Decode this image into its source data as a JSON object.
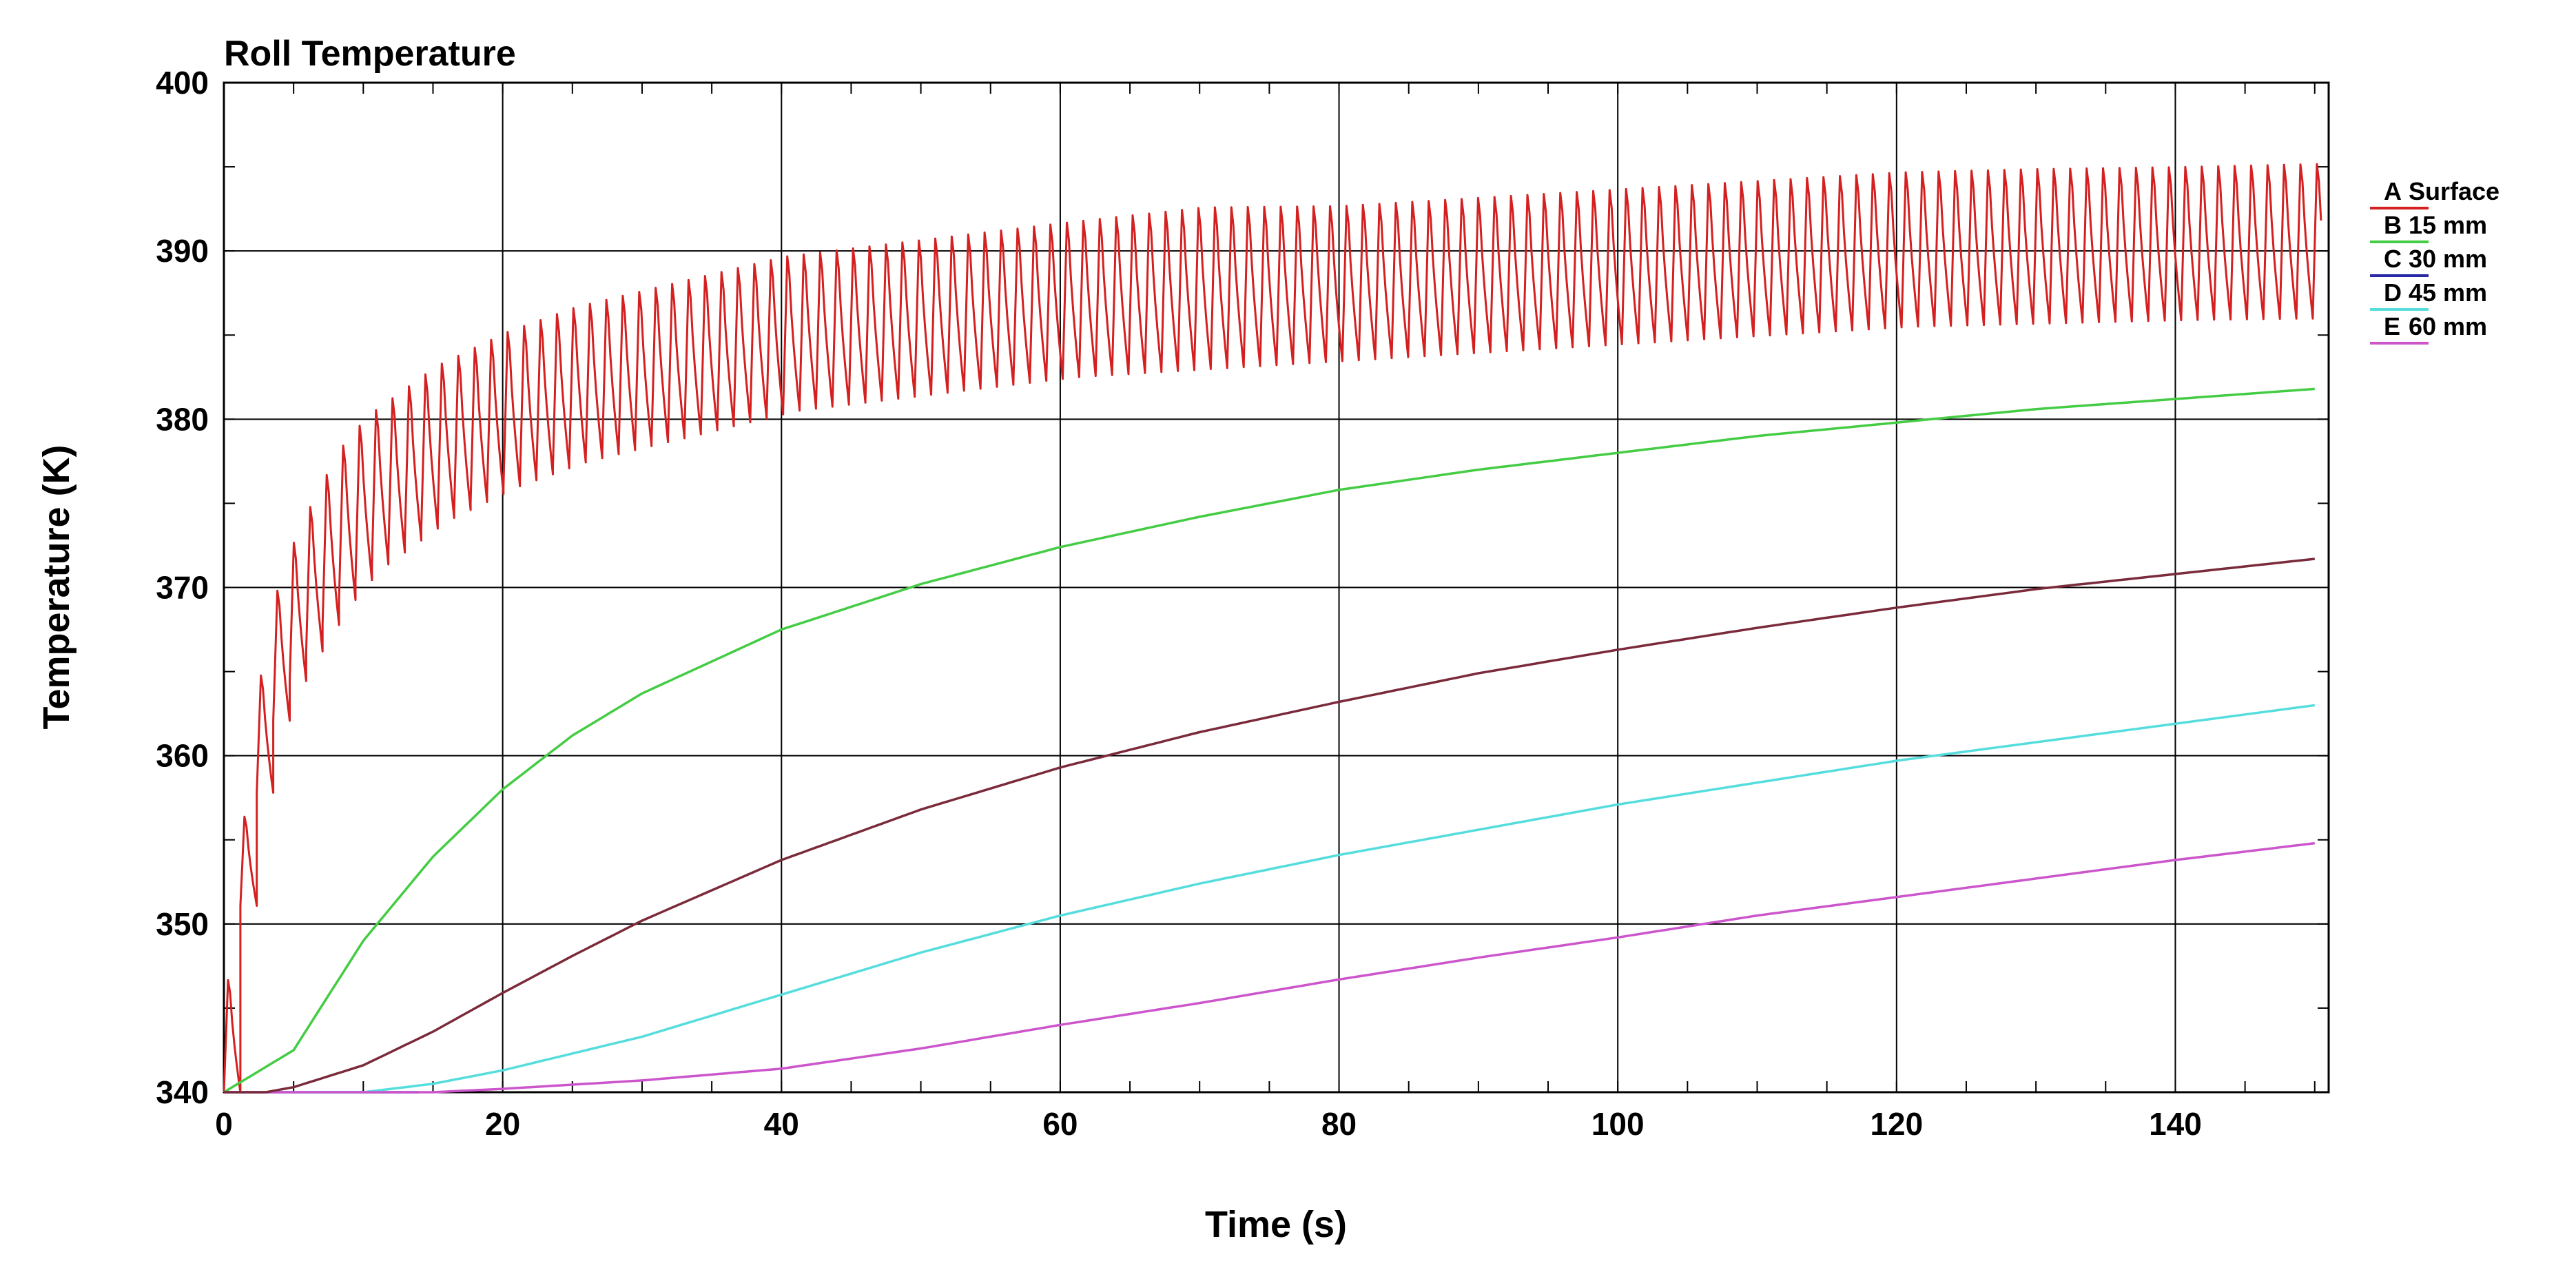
{
  "chart_data": {
    "type": "line",
    "title": "Roll Temperature",
    "xlabel": "Time (s)",
    "ylabel": "Temperature (K)",
    "xlim": [
      0,
      151
    ],
    "ylim": [
      340,
      400
    ],
    "xticks": [
      0,
      20,
      40,
      60,
      80,
      100,
      120,
      140
    ],
    "yticks": [
      340,
      350,
      360,
      370,
      380,
      390,
      400
    ],
    "grid": true,
    "legend_position": "right",
    "series": [
      {
        "letter": "A",
        "name": "Surface",
        "color": "#d42020",
        "oscillating": true,
        "upper": [
          [
            0,
            348
          ],
          [
            1,
            356
          ],
          [
            2,
            364
          ],
          [
            3,
            370
          ],
          [
            5,
            375
          ],
          [
            8,
            380
          ],
          [
            10,
            382
          ],
          [
            15,
            385
          ],
          [
            20,
            387
          ],
          [
            25,
            388.5
          ],
          [
            30,
            389.5
          ],
          [
            40,
            391.5
          ],
          [
            50,
            392.5
          ],
          [
            60,
            393.5
          ],
          [
            70,
            394.5
          ],
          [
            80,
            394.5
          ],
          [
            90,
            395
          ],
          [
            100,
            395.5
          ],
          [
            110,
            396
          ],
          [
            120,
            396.5
          ],
          [
            130,
            396.7
          ],
          [
            140,
            396.8
          ],
          [
            150,
            397
          ]
        ],
        "lower": [
          [
            0,
            340
          ],
          [
            1,
            350
          ],
          [
            2,
            356
          ],
          [
            3,
            361
          ],
          [
            5,
            365
          ],
          [
            8,
            369
          ],
          [
            10,
            371
          ],
          [
            15,
            374
          ],
          [
            20,
            376
          ],
          [
            25,
            377.5
          ],
          [
            30,
            378.5
          ],
          [
            40,
            380.5
          ],
          [
            50,
            381.5
          ],
          [
            60,
            382.5
          ],
          [
            70,
            383
          ],
          [
            80,
            383.5
          ],
          [
            90,
            384
          ],
          [
            100,
            384.5
          ],
          [
            110,
            385
          ],
          [
            120,
            385.5
          ],
          [
            130,
            385.7
          ],
          [
            140,
            385.9
          ],
          [
            150,
            386
          ]
        ]
      },
      {
        "letter": "B",
        "name": "15 mm",
        "color": "#44cc44",
        "points": [
          [
            0,
            340
          ],
          [
            5,
            342.5
          ],
          [
            10,
            349
          ],
          [
            15,
            354
          ],
          [
            20,
            358
          ],
          [
            25,
            361.2
          ],
          [
            30,
            363.7
          ],
          [
            40,
            367.5
          ],
          [
            50,
            370.2
          ],
          [
            60,
            372.4
          ],
          [
            70,
            374.2
          ],
          [
            80,
            375.8
          ],
          [
            90,
            377
          ],
          [
            100,
            378
          ],
          [
            110,
            379
          ],
          [
            120,
            379.8
          ],
          [
            130,
            380.6
          ],
          [
            140,
            381.2
          ],
          [
            150,
            381.8
          ]
        ]
      },
      {
        "letter": "C",
        "name": "30 mm",
        "color": "#2a2aa8",
        "points": [
          [
            0,
            340
          ],
          [
            14,
            340
          ]
        ]
      },
      {
        "letter": "D",
        "name": "45 mm",
        "color": "#55dddd",
        "points": [
          [
            0,
            340
          ],
          [
            10,
            340
          ],
          [
            15,
            340.5
          ],
          [
            20,
            341.3
          ],
          [
            30,
            343.3
          ],
          [
            40,
            345.8
          ],
          [
            50,
            348.3
          ],
          [
            60,
            350.5
          ],
          [
            70,
            352.4
          ],
          [
            80,
            354.1
          ],
          [
            90,
            355.6
          ],
          [
            100,
            357.1
          ],
          [
            110,
            358.4
          ],
          [
            120,
            359.7
          ],
          [
            130,
            360.8
          ],
          [
            140,
            361.9
          ],
          [
            150,
            363
          ]
        ]
      },
      {
        "letter": "E",
        "name": "60 mm",
        "color": "#cc55cc",
        "points": [
          [
            0,
            340
          ],
          [
            15,
            340
          ],
          [
            20,
            340.2
          ],
          [
            30,
            340.7
          ],
          [
            40,
            341.4
          ],
          [
            50,
            342.6
          ],
          [
            60,
            344
          ],
          [
            70,
            345.3
          ],
          [
            80,
            346.7
          ],
          [
            90,
            348
          ],
          [
            100,
            349.2
          ],
          [
            110,
            350.5
          ],
          [
            120,
            351.6
          ],
          [
            130,
            352.7
          ],
          [
            140,
            353.8
          ],
          [
            150,
            354.8
          ]
        ]
      },
      {
        "letter": "",
        "name": "",
        "color": "#7a2a3a",
        "unlabeled": true,
        "points": [
          [
            0,
            340
          ],
          [
            3,
            340
          ],
          [
            5,
            340.3
          ],
          [
            10,
            341.6
          ],
          [
            15,
            343.6
          ],
          [
            20,
            345.9
          ],
          [
            25,
            348.1
          ],
          [
            30,
            350.2
          ],
          [
            40,
            353.8
          ],
          [
            50,
            356.8
          ],
          [
            60,
            359.3
          ],
          [
            70,
            361.4
          ],
          [
            80,
            363.2
          ],
          [
            90,
            364.9
          ],
          [
            100,
            366.3
          ],
          [
            110,
            367.6
          ],
          [
            120,
            368.8
          ],
          [
            130,
            369.9
          ],
          [
            140,
            370.8
          ],
          [
            150,
            371.7
          ]
        ]
      }
    ]
  }
}
